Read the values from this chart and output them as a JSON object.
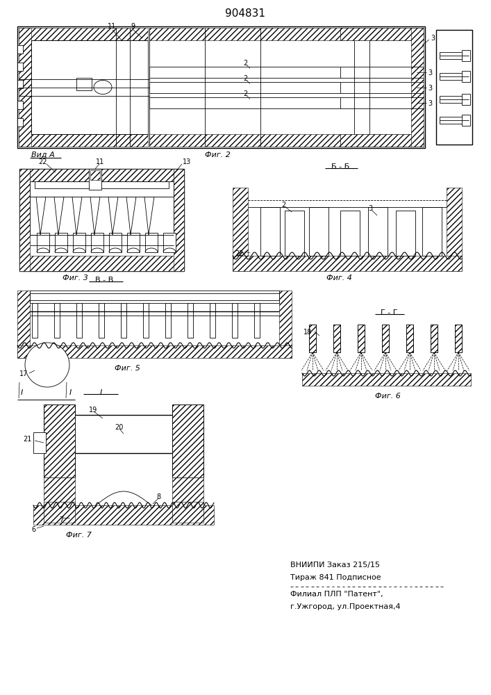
{
  "title": "904831",
  "bg_color": "#ffffff",
  "line_color": "#000000",
  "footer_line1": "ВНИИПИ Заказ 215/15",
  "footer_line2": "Тираж 841 Подписное",
  "footer_line3": "Филиал ПЛП \"Патент\",",
  "footer_line4": "г.Ужгород, ул.Проектная,4",
  "label_vidA": "Вид А",
  "label_fig2": "Фиг. 2",
  "label_fig3": "Фиг. 3",
  "label_fig4": "Фиг. 4",
  "label_fig5": "Фиг. 5",
  "label_fig6": "Фиг. 6",
  "label_fig7": "Фиг. 7",
  "label_bb": "Б - Б",
  "label_vv": "В - В",
  "label_gg": "Г - Г"
}
